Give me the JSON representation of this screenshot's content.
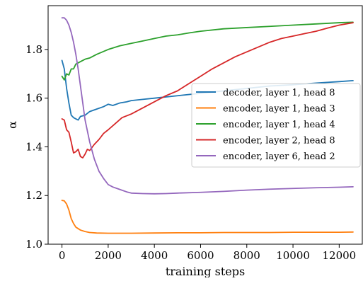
{
  "chart_data": {
    "type": "line",
    "xlabel": "training steps",
    "ylabel": "α",
    "xlim": [
      -600,
      13000
    ],
    "ylim": [
      1.0,
      1.98
    ],
    "xticks": [
      0,
      2000,
      4000,
      6000,
      8000,
      10000,
      12000
    ],
    "yticks": [
      1.0,
      1.2,
      1.4,
      1.6,
      1.8
    ],
    "xtick_labels": [
      "0",
      "2000",
      "4000",
      "6000",
      "8000",
      "10000",
      "12000"
    ],
    "ytick_labels": [
      "1.0",
      "1.2",
      "1.4",
      "1.6",
      "1.8"
    ],
    "grid": false,
    "legend_position": "center-right",
    "series": [
      {
        "name": "decoder, layer 1, head 8",
        "color": "#1f77b4",
        "points": [
          [
            0,
            1.755
          ],
          [
            100,
            1.72
          ],
          [
            200,
            1.64
          ],
          [
            300,
            1.58
          ],
          [
            400,
            1.53
          ],
          [
            500,
            1.52
          ],
          [
            600,
            1.515
          ],
          [
            700,
            1.51
          ],
          [
            800,
            1.525
          ],
          [
            1000,
            1.53
          ],
          [
            1200,
            1.545
          ],
          [
            1500,
            1.555
          ],
          [
            1800,
            1.565
          ],
          [
            2000,
            1.575
          ],
          [
            2200,
            1.57
          ],
          [
            2500,
            1.58
          ],
          [
            2800,
            1.585
          ],
          [
            3000,
            1.59
          ],
          [
            3500,
            1.595
          ],
          [
            4000,
            1.6
          ],
          [
            4500,
            1.605
          ],
          [
            5000,
            1.61
          ],
          [
            6000,
            1.62
          ],
          [
            7000,
            1.63
          ],
          [
            8000,
            1.64
          ],
          [
            9000,
            1.65
          ],
          [
            10000,
            1.655
          ],
          [
            11000,
            1.662
          ],
          [
            12000,
            1.668
          ],
          [
            12600,
            1.672
          ]
        ]
      },
      {
        "name": "encoder, layer 1, head 3",
        "color": "#ff7f0e",
        "points": [
          [
            0,
            1.18
          ],
          [
            100,
            1.178
          ],
          [
            200,
            1.165
          ],
          [
            300,
            1.14
          ],
          [
            400,
            1.105
          ],
          [
            500,
            1.085
          ],
          [
            600,
            1.07
          ],
          [
            800,
            1.058
          ],
          [
            1000,
            1.052
          ],
          [
            1200,
            1.048
          ],
          [
            1500,
            1.046
          ],
          [
            2000,
            1.045
          ],
          [
            3000,
            1.045
          ],
          [
            4000,
            1.046
          ],
          [
            5000,
            1.047
          ],
          [
            6000,
            1.047
          ],
          [
            7000,
            1.048
          ],
          [
            8000,
            1.048
          ],
          [
            9000,
            1.048
          ],
          [
            10000,
            1.049
          ],
          [
            11000,
            1.049
          ],
          [
            12000,
            1.049
          ],
          [
            12600,
            1.05
          ]
        ]
      },
      {
        "name": "encoder, layer 1, head 4",
        "color": "#2ca02c",
        "points": [
          [
            0,
            1.69
          ],
          [
            100,
            1.675
          ],
          [
            200,
            1.7
          ],
          [
            300,
            1.695
          ],
          [
            400,
            1.72
          ],
          [
            500,
            1.72
          ],
          [
            600,
            1.74
          ],
          [
            800,
            1.75
          ],
          [
            1000,
            1.76
          ],
          [
            1200,
            1.765
          ],
          [
            1500,
            1.78
          ],
          [
            2000,
            1.8
          ],
          [
            2500,
            1.815
          ],
          [
            3000,
            1.825
          ],
          [
            3500,
            1.835
          ],
          [
            4000,
            1.845
          ],
          [
            4500,
            1.855
          ],
          [
            5000,
            1.86
          ],
          [
            5500,
            1.868
          ],
          [
            6000,
            1.875
          ],
          [
            7000,
            1.885
          ],
          [
            8000,
            1.89
          ],
          [
            9000,
            1.895
          ],
          [
            10000,
            1.9
          ],
          [
            11000,
            1.905
          ],
          [
            12000,
            1.91
          ],
          [
            12600,
            1.912
          ]
        ]
      },
      {
        "name": "encoder, layer 2, head 8",
        "color": "#d62728",
        "points": [
          [
            0,
            1.515
          ],
          [
            100,
            1.51
          ],
          [
            200,
            1.47
          ],
          [
            300,
            1.46
          ],
          [
            400,
            1.42
          ],
          [
            500,
            1.375
          ],
          [
            600,
            1.38
          ],
          [
            700,
            1.39
          ],
          [
            800,
            1.36
          ],
          [
            900,
            1.355
          ],
          [
            1000,
            1.37
          ],
          [
            1100,
            1.39
          ],
          [
            1200,
            1.385
          ],
          [
            1400,
            1.41
          ],
          [
            1600,
            1.43
          ],
          [
            1800,
            1.455
          ],
          [
            2000,
            1.47
          ],
          [
            2300,
            1.495
          ],
          [
            2600,
            1.52
          ],
          [
            3000,
            1.535
          ],
          [
            3500,
            1.56
          ],
          [
            4000,
            1.585
          ],
          [
            4500,
            1.61
          ],
          [
            5000,
            1.63
          ],
          [
            5500,
            1.66
          ],
          [
            6000,
            1.69
          ],
          [
            6500,
            1.72
          ],
          [
            7000,
            1.745
          ],
          [
            7500,
            1.77
          ],
          [
            8000,
            1.79
          ],
          [
            8500,
            1.81
          ],
          [
            9000,
            1.83
          ],
          [
            9500,
            1.845
          ],
          [
            10000,
            1.855
          ],
          [
            10500,
            1.865
          ],
          [
            11000,
            1.875
          ],
          [
            11500,
            1.888
          ],
          [
            12000,
            1.9
          ],
          [
            12600,
            1.91
          ]
        ]
      },
      {
        "name": "encoder, layer 6, head 2",
        "color": "#9467bd",
        "points": [
          [
            0,
            1.93
          ],
          [
            100,
            1.93
          ],
          [
            200,
            1.92
          ],
          [
            300,
            1.9
          ],
          [
            400,
            1.87
          ],
          [
            500,
            1.83
          ],
          [
            600,
            1.78
          ],
          [
            700,
            1.72
          ],
          [
            800,
            1.65
          ],
          [
            900,
            1.58
          ],
          [
            1000,
            1.51
          ],
          [
            1200,
            1.42
          ],
          [
            1400,
            1.35
          ],
          [
            1600,
            1.3
          ],
          [
            1800,
            1.27
          ],
          [
            2000,
            1.245
          ],
          [
            2200,
            1.235
          ],
          [
            2500,
            1.225
          ],
          [
            2800,
            1.215
          ],
          [
            3000,
            1.21
          ],
          [
            3500,
            1.208
          ],
          [
            4000,
            1.207
          ],
          [
            4500,
            1.208
          ],
          [
            5000,
            1.21
          ],
          [
            6000,
            1.213
          ],
          [
            7000,
            1.217
          ],
          [
            8000,
            1.222
          ],
          [
            9000,
            1.226
          ],
          [
            10000,
            1.229
          ],
          [
            11000,
            1.232
          ],
          [
            12000,
            1.234
          ],
          [
            12600,
            1.236
          ]
        ]
      }
    ]
  }
}
